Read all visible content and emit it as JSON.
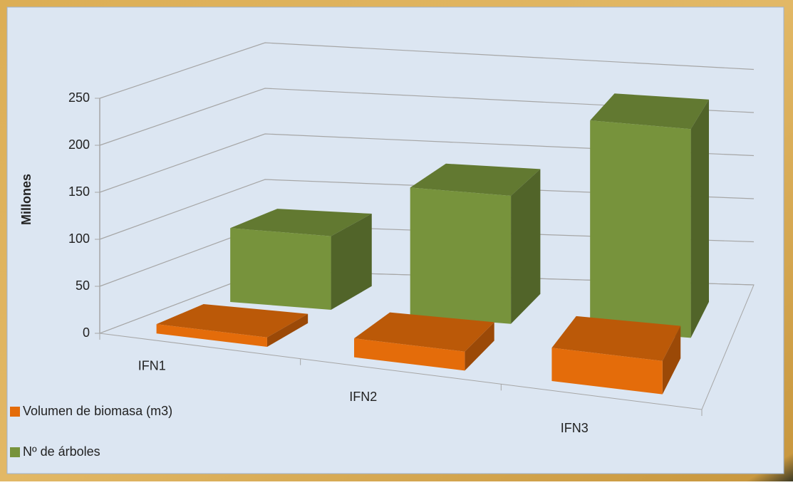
{
  "chart_data": {
    "type": "bar3d",
    "y_axis_label": "Millones",
    "categories": [
      "IFN1",
      "IFN2",
      "IFN3"
    ],
    "series": [
      {
        "name": "Volumen de biomasa (m3)",
        "color": "#e46c0a",
        "values": [
          10,
          20,
          35
        ]
      },
      {
        "name": "Nº de árboles",
        "color": "#77933c",
        "values": [
          80,
          140,
          230
        ]
      }
    ],
    "ylim": [
      0,
      250
    ],
    "yticks": [
      0,
      50,
      100,
      150,
      200,
      250
    ],
    "grid": true,
    "legend": "bottom-left"
  }
}
